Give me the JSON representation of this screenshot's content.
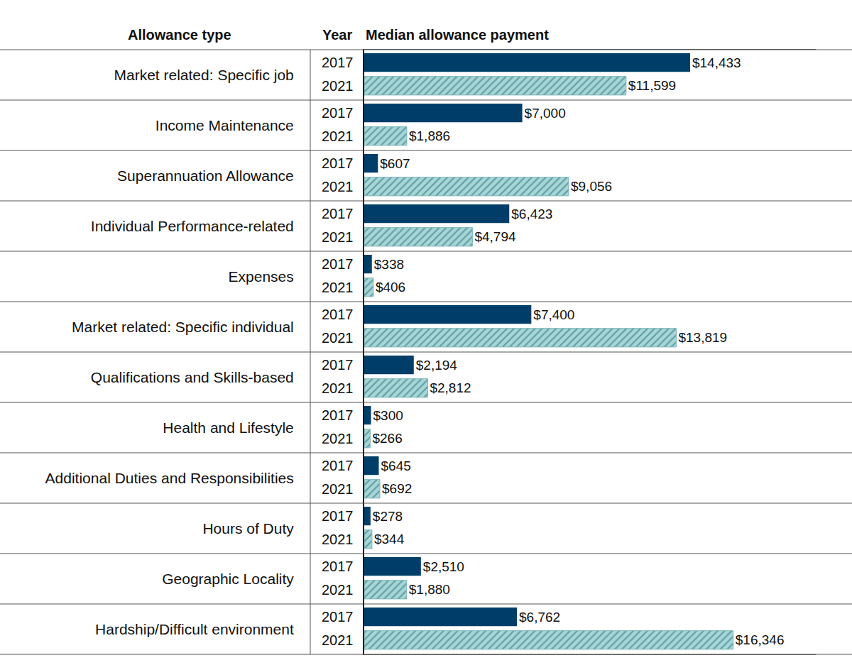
{
  "chart_data": {
    "type": "bar",
    "orientation": "horizontal",
    "x_label": "Median allowance payment",
    "y_label": "Allowance type",
    "annotations": [
      "Year"
    ],
    "categories": [
      "Market related: Specific job",
      "Income Maintenance",
      "Superannuation Allowance",
      "Individual Performance-related",
      "Expenses",
      "Market related: Specific individual",
      "Qualifications and Skills-based",
      "Health and Lifestyle",
      "Additional Duties and Responsibilities",
      "Hours of Duty",
      "Geographic Locality",
      "Hardship/Difficult environment"
    ],
    "series": [
      {
        "name": "2017",
        "color": "#003e69",
        "values": [
          14433,
          7000,
          607,
          6423,
          338,
          7400,
          2194,
          300,
          645,
          278,
          2510,
          6762
        ],
        "value_labels": [
          "$14,433",
          "$7,000",
          "$607",
          "$6,423",
          "$338",
          "$7,400",
          "$2,194",
          "$300",
          "$645",
          "$278",
          "$2,510",
          "$6,762"
        ]
      },
      {
        "name": "2021",
        "color": "#a8d5d6",
        "marker": "hatch",
        "values": [
          11599,
          1886,
          9056,
          4794,
          406,
          13819,
          2812,
          266,
          692,
          344,
          1880,
          16346
        ],
        "value_labels": [
          "$11,599",
          "$1,886",
          "$9,056",
          "$4,794",
          "$406",
          "$13,819",
          "$2,812",
          "$266",
          "$692",
          "$344",
          "$1,880",
          "$16,346"
        ]
      }
    ],
    "xlim": [
      0,
      20000
    ],
    "data_labels": true,
    "tick_labels": "y",
    "grid": false
  }
}
